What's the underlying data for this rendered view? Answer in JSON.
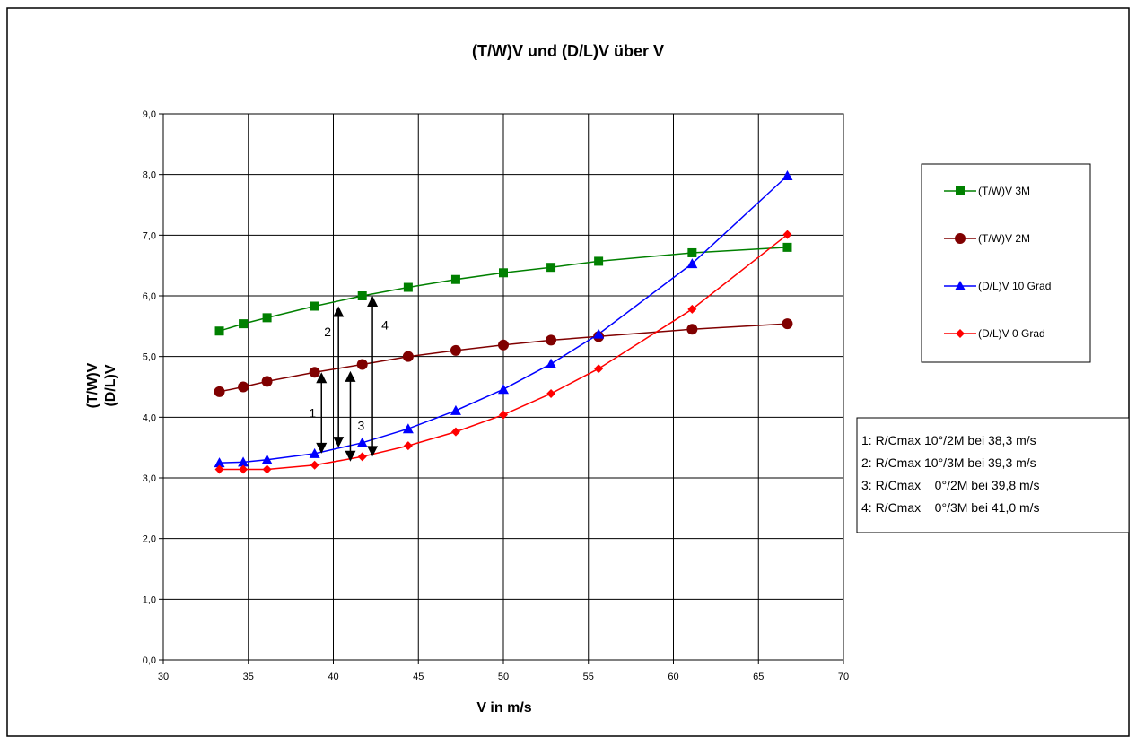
{
  "chart_data": {
    "type": "line",
    "title": "(T/W)V und (D/L)V über V",
    "xlabel": "V in m/s",
    "ylabel_lines": [
      "(T/W)V",
      "(D/L)V"
    ],
    "xlim": [
      30,
      70
    ],
    "ylim": [
      0,
      9
    ],
    "x_ticks": [
      "30",
      "35",
      "40",
      "45",
      "50",
      "55",
      "60",
      "65",
      "70"
    ],
    "y_ticks": [
      "0,0",
      "1,0",
      "2,0",
      "3,0",
      "4,0",
      "5,0",
      "6,0",
      "7,0",
      "8,0",
      "9,0"
    ],
    "grid": "horizontal and vertical",
    "legend_position": "right",
    "series": [
      {
        "name": "(T/W)V 3M",
        "color": "#008000",
        "marker": "square",
        "x": [
          33.3,
          34.7,
          36.1,
          38.9,
          41.7,
          44.4,
          47.2,
          50.0,
          52.8,
          55.6,
          61.1,
          66.7
        ],
        "y": [
          5.42,
          5.54,
          5.64,
          5.83,
          6.0,
          6.14,
          6.27,
          6.38,
          6.47,
          6.57,
          6.71,
          6.8
        ]
      },
      {
        "name": "(T/W)V 2M",
        "color": "#800000",
        "marker": "circle",
        "x": [
          33.3,
          34.7,
          36.1,
          38.9,
          41.7,
          44.4,
          47.2,
          50.0,
          52.8,
          55.6,
          61.1,
          66.7
        ],
        "y": [
          4.42,
          4.5,
          4.59,
          4.74,
          4.87,
          5.0,
          5.1,
          5.19,
          5.27,
          5.33,
          5.45,
          5.54
        ]
      },
      {
        "name": "(D/L)V 10 Grad",
        "color": "#0000ff",
        "marker": "triangle",
        "x": [
          33.3,
          34.7,
          36.1,
          38.9,
          41.7,
          44.4,
          47.2,
          50.0,
          52.8,
          55.6,
          61.1,
          66.7
        ],
        "y": [
          3.25,
          3.26,
          3.3,
          3.4,
          3.58,
          3.81,
          4.11,
          4.46,
          4.88,
          5.37,
          6.53,
          7.98
        ]
      },
      {
        "name": "(D/L)V 0 Grad",
        "color": "#ff0000",
        "marker": "diamond",
        "x": [
          33.3,
          34.7,
          36.1,
          38.9,
          41.7,
          44.4,
          47.2,
          50.0,
          52.8,
          55.6,
          61.1,
          66.7
        ],
        "y": [
          3.14,
          3.14,
          3.14,
          3.21,
          3.35,
          3.53,
          3.76,
          4.04,
          4.39,
          4.8,
          5.78,
          7.01
        ]
      }
    ],
    "annotations": [
      {
        "label": "1",
        "x": 39.3,
        "y_from": 3.4,
        "y_to": 4.74
      },
      {
        "label": "2",
        "x": 40.3,
        "y_from": 3.5,
        "y_to": 5.83
      },
      {
        "label": "3",
        "x": 41.0,
        "y_from": 3.27,
        "y_to": 4.76
      },
      {
        "label": "4",
        "x": 42.3,
        "y_from": 3.35,
        "y_to": 6.0
      }
    ],
    "notes": [
      "1: R/Cmax 10°/2M bei 38,3 m/s",
      "2: R/Cmax 10°/3M bei 39,3 m/s",
      "3: R/Cmax    0°/2M bei 39,8 m/s",
      "4: R/Cmax    0°/3M bei 41,0 m/s"
    ]
  }
}
